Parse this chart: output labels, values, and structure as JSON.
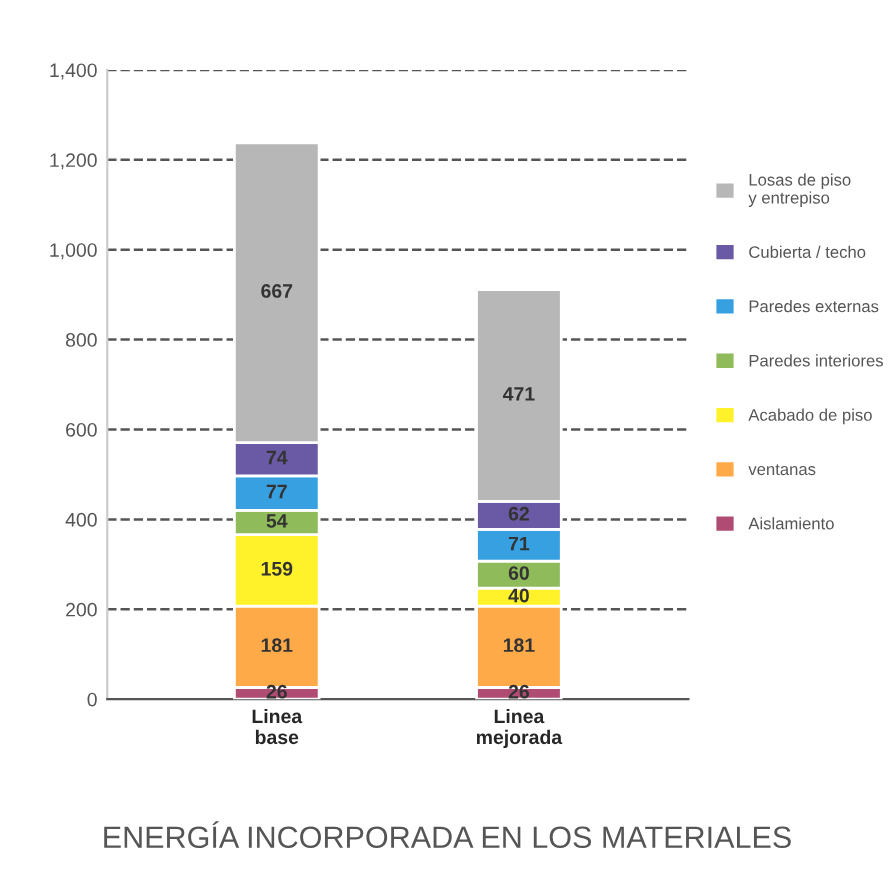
{
  "chart_data": {
    "type": "bar",
    "stacked": true,
    "title": "ENERGÍA INCORPORADA EN LOS MATERIALES",
    "categories": [
      "Linea\nbase",
      "Linea\nmejorada"
    ],
    "series": [
      {
        "name": "Aislamiento",
        "color": "#b04b73",
        "values": [
          26,
          26
        ]
      },
      {
        "name": "ventanas",
        "color": "#ffaa48",
        "values": [
          181,
          181
        ]
      },
      {
        "name": "Acabado de piso",
        "color": "#fff22a",
        "values": [
          159,
          40
        ]
      },
      {
        "name": "Paredes interiores",
        "color": "#8fbb5a",
        "values": [
          54,
          60
        ]
      },
      {
        "name": "Paredes externas",
        "color": "#36a0e0",
        "values": [
          77,
          71
        ]
      },
      {
        "name": "Cubierta / techo",
        "color": "#6a5aa5",
        "values": [
          74,
          62
        ]
      },
      {
        "name": "Losas de piso\ny entrepiso",
        "color": "#b7b7b7",
        "values": [
          667,
          471
        ]
      }
    ],
    "ylim": [
      0,
      1400
    ],
    "yticks": [
      0,
      {
        "value": 200,
        "label": "200"
      },
      {
        "value": 400,
        "label": "400"
      },
      {
        "value": 600,
        "label": "600"
      },
      {
        "value": 800,
        "label": "800"
      },
      {
        "value": 1000,
        "label": "1,000"
      },
      {
        "value": 1200,
        "label": "1,200"
      },
      {
        "value": 1400,
        "label": "1,400"
      }
    ],
    "grid": "y",
    "legend": "right",
    "data_labels": true
  }
}
